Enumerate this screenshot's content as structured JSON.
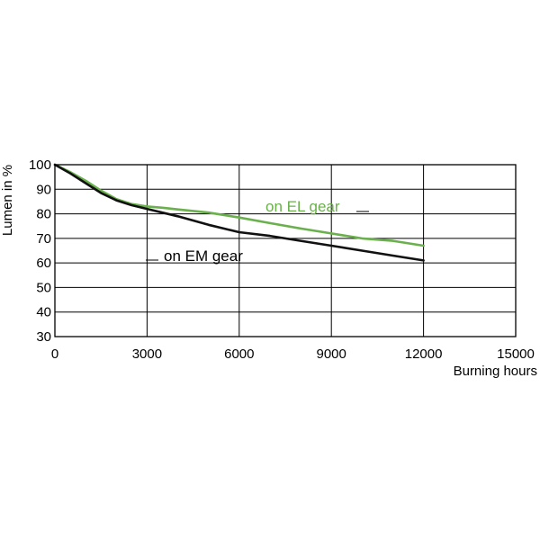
{
  "chart_data": {
    "type": "line",
    "title": "",
    "xlabel": "Burning hours",
    "ylabel": "Lumen in %",
    "xlim": [
      0,
      15000
    ],
    "ylim": [
      30,
      100
    ],
    "xticks": [
      0,
      3000,
      6000,
      9000,
      12000,
      15000
    ],
    "xtick_labels": [
      "0",
      "3000",
      "6000",
      "9000",
      "12000",
      "15000"
    ],
    "yticks": [
      30,
      40,
      50,
      60,
      70,
      80,
      90,
      100
    ],
    "ytick_labels": [
      "30",
      "40",
      "50",
      "60",
      "70",
      "80",
      "90",
      "100"
    ],
    "grid": true,
    "legend": "inline labels",
    "series": [
      {
        "name": "on EL gear",
        "color": "#6ab04c",
        "x": [
          0,
          500,
          1000,
          1500,
          2000,
          2500,
          3000,
          3500,
          4000,
          5000,
          6000,
          7000,
          8000,
          9000,
          10000,
          11000,
          12000
        ],
        "y": [
          100,
          97,
          93.5,
          89.5,
          86,
          84,
          83,
          82.5,
          81.8,
          80.5,
          78.5,
          76.2,
          74,
          72,
          70,
          69,
          67
        ]
      },
      {
        "name": "on EM gear",
        "color": "#111111",
        "x": [
          0,
          500,
          1000,
          1500,
          2000,
          2500,
          3000,
          4000,
          5000,
          6000,
          7000,
          8000,
          9000,
          10000,
          11000,
          12000
        ],
        "y": [
          100,
          96.5,
          92.5,
          88.5,
          85.5,
          83.5,
          82,
          79,
          75.5,
          72.5,
          71,
          69,
          67,
          65,
          63,
          61
        ]
      }
    ]
  }
}
